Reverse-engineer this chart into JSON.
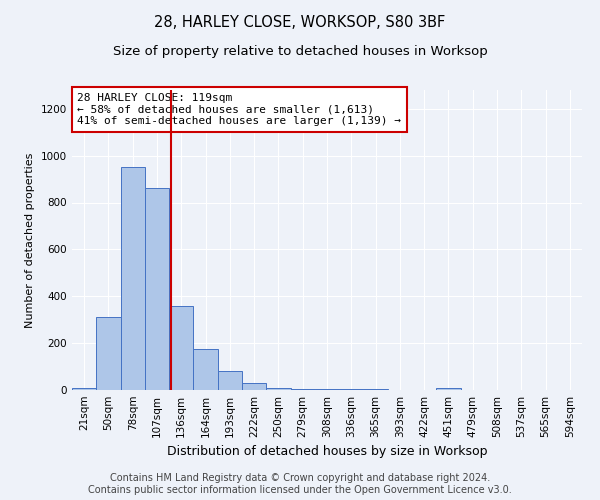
{
  "title": "28, HARLEY CLOSE, WORKSOP, S80 3BF",
  "subtitle": "Size of property relative to detached houses in Worksop",
  "xlabel": "Distribution of detached houses by size in Worksop",
  "ylabel": "Number of detached properties",
  "categories": [
    "21sqm",
    "50sqm",
    "78sqm",
    "107sqm",
    "136sqm",
    "164sqm",
    "193sqm",
    "222sqm",
    "250sqm",
    "279sqm",
    "308sqm",
    "336sqm",
    "365sqm",
    "393sqm",
    "422sqm",
    "451sqm",
    "479sqm",
    "508sqm",
    "537sqm",
    "565sqm",
    "594sqm"
  ],
  "values": [
    10,
    310,
    950,
    860,
    360,
    175,
    80,
    30,
    10,
    5,
    5,
    5,
    5,
    0,
    0,
    10,
    0,
    0,
    0,
    0,
    0
  ],
  "bar_color": "#aec6e8",
  "bar_edge_color": "#4472c4",
  "red_line_x": 3.58,
  "annotation_line1": "28 HARLEY CLOSE: 119sqm",
  "annotation_line2": "← 58% of detached houses are smaller (1,613)",
  "annotation_line3": "41% of semi-detached houses are larger (1,139) →",
  "annotation_box_color": "#ffffff",
  "annotation_box_edge": "#cc0000",
  "ylim": [
    0,
    1280
  ],
  "yticks": [
    0,
    200,
    400,
    600,
    800,
    1000,
    1200
  ],
  "footer": "Contains HM Land Registry data © Crown copyright and database right 2024.\nContains public sector information licensed under the Open Government Licence v3.0.",
  "background_color": "#eef2f9",
  "grid_color": "#ffffff",
  "title_fontsize": 10.5,
  "subtitle_fontsize": 9.5,
  "xlabel_fontsize": 9,
  "ylabel_fontsize": 8,
  "tick_fontsize": 7.5,
  "annotation_fontsize": 8,
  "footer_fontsize": 7
}
